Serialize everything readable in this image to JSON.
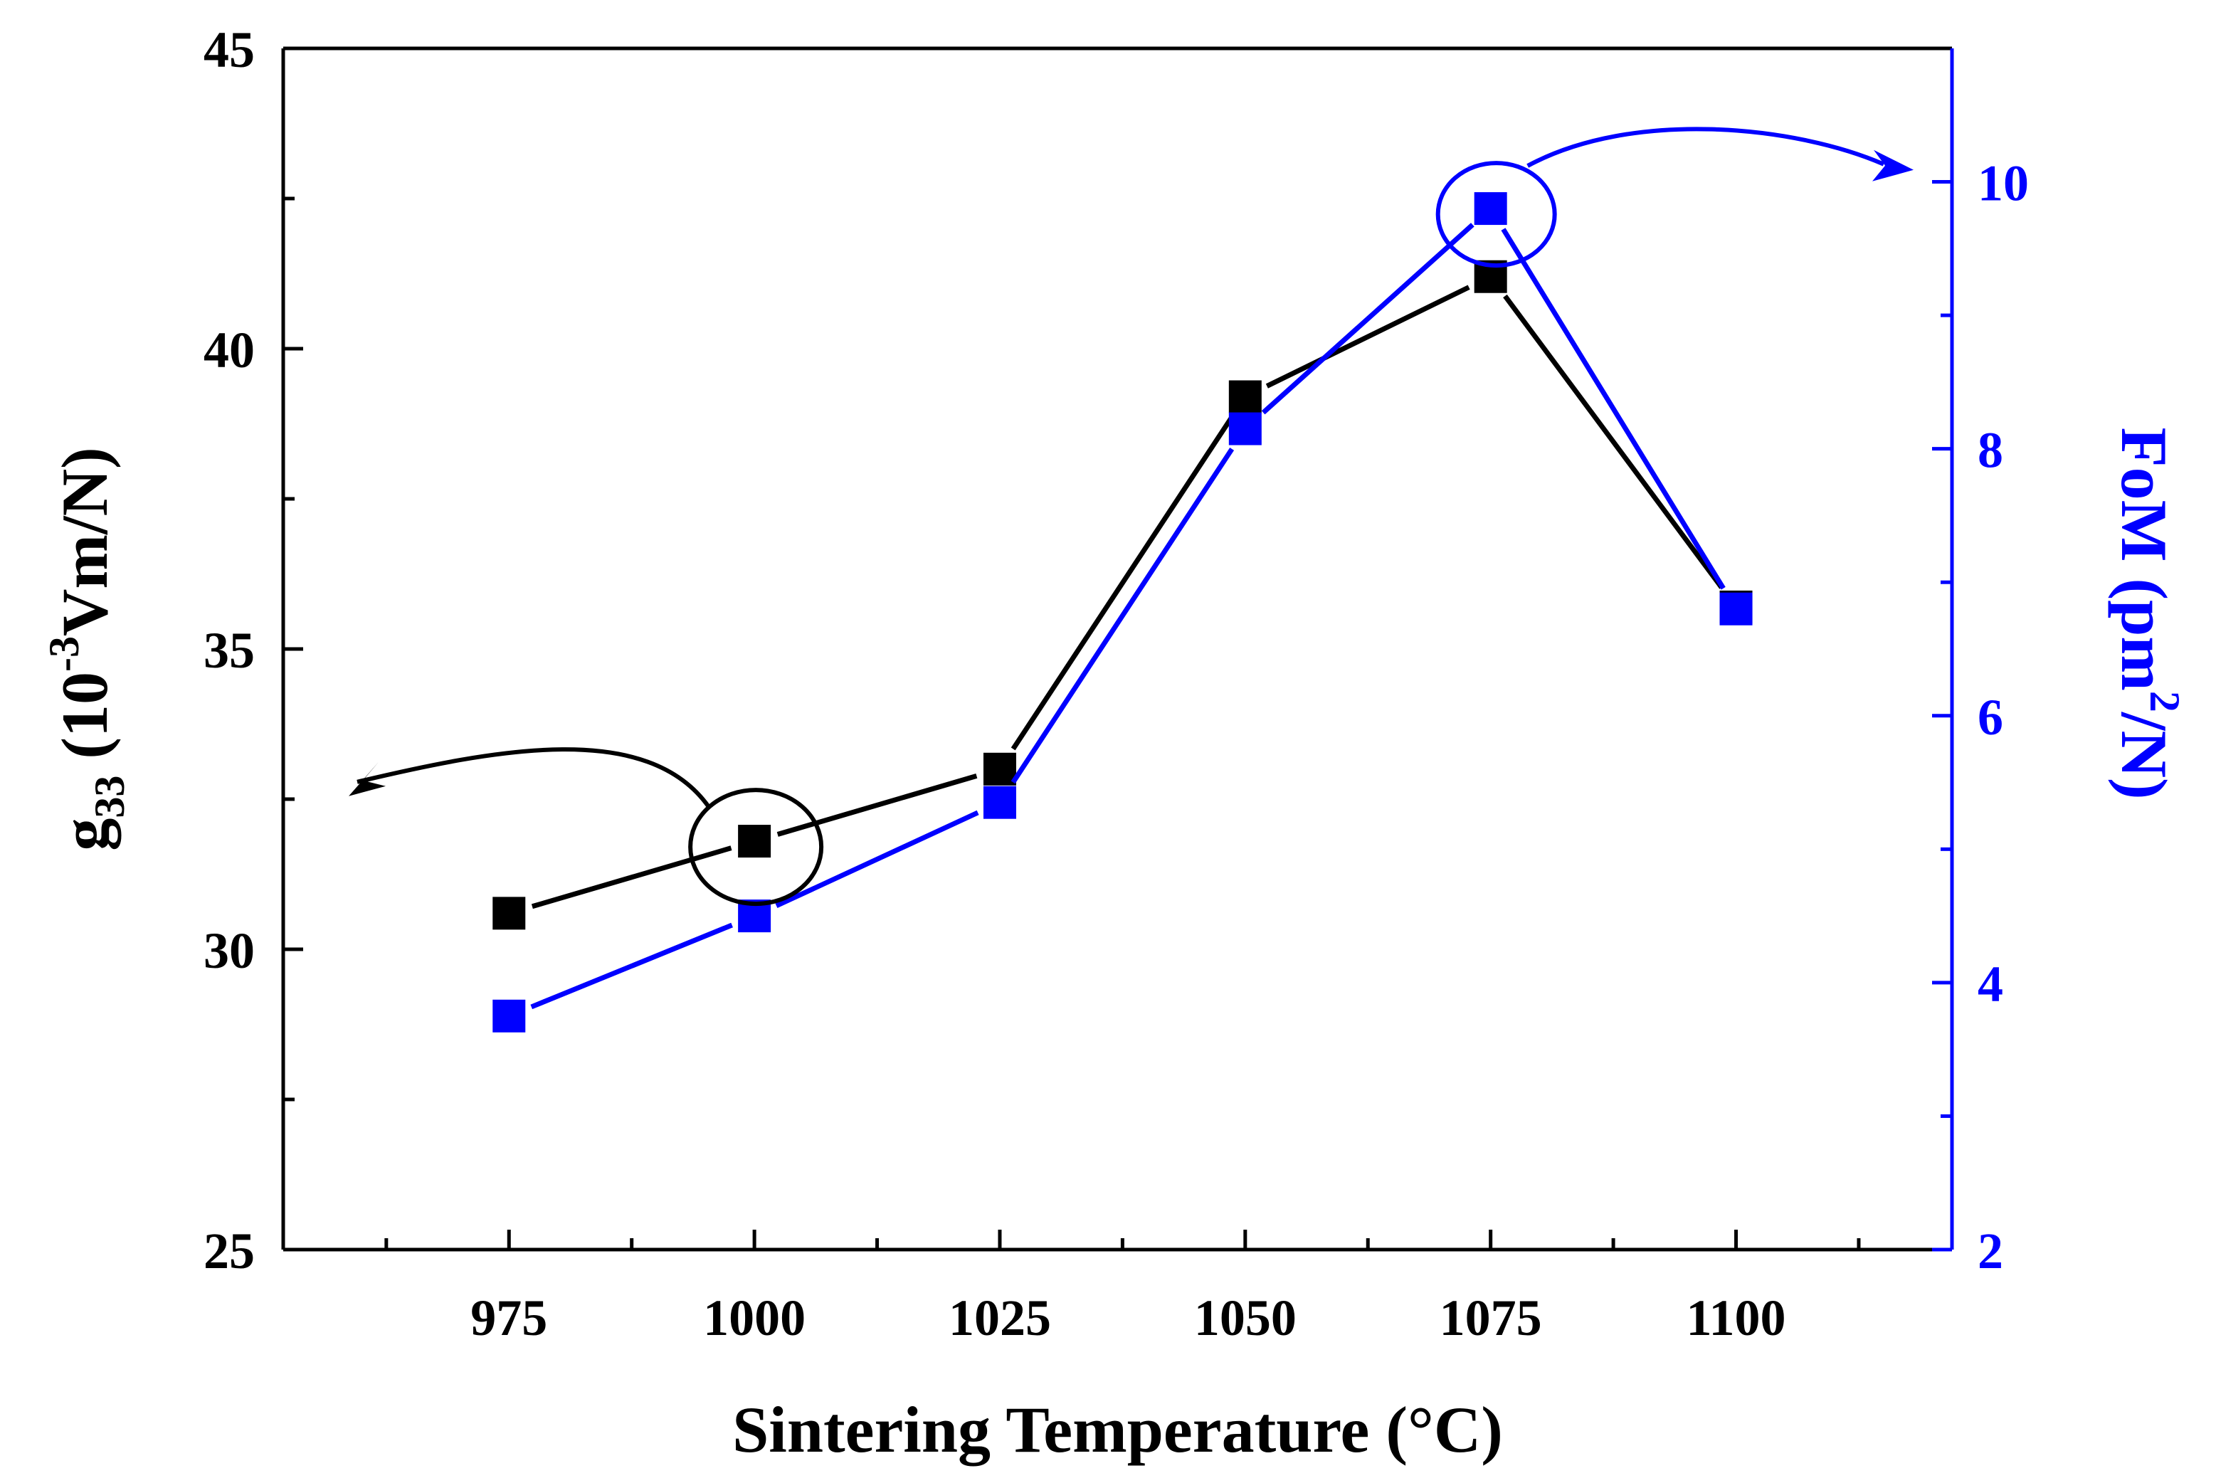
{
  "chart_data": {
    "type": "line",
    "title": "",
    "xlabel": "Sintering Temperature (°C)",
    "xlim": [
      952,
      1122
    ],
    "x_ticks": [
      975,
      1000,
      1025,
      1050,
      1075,
      1100
    ],
    "x_tick_labels": [
      "975",
      "1000",
      "1025",
      "1050",
      "1075",
      "1100"
    ],
    "y_left": {
      "label_main": "g",
      "label_sub": "33",
      "label_rest1": " (10",
      "label_sup": "-3",
      "label_rest2": "Vm/N)",
      "lim": [
        25,
        45
      ],
      "ticks": [
        25,
        30,
        35,
        40,
        45
      ],
      "tick_labels": [
        "25",
        "30",
        "35",
        "40",
        "45"
      ],
      "color": "#000000"
    },
    "y_right": {
      "label_part1": "FoM (pm",
      "label_sup": "2",
      "label_part2": "/N)",
      "lim": [
        2,
        11
      ],
      "ticks": [
        2,
        4,
        6,
        8,
        10
      ],
      "tick_labels": [
        "2",
        "4",
        "6",
        "8",
        "10"
      ],
      "color": "#0000ff"
    },
    "x": [
      975,
      1000,
      1025,
      1050,
      1075,
      1100
    ],
    "series": [
      {
        "name": "g33",
        "axis": "left",
        "color": "#000000",
        "values": [
          30.6,
          31.8,
          33.0,
          39.2,
          41.2,
          35.7
        ]
      },
      {
        "name": "FoM",
        "axis": "right",
        "color": "#0000ff",
        "values": [
          3.75,
          4.5,
          5.35,
          8.15,
          9.8,
          6.8
        ]
      }
    ],
    "annotations": [
      {
        "type": "circle",
        "series": "g33",
        "index": 1,
        "arrow_to": "left-axis"
      },
      {
        "type": "circle",
        "series": "FoM",
        "index": 4,
        "arrow_to": "right-axis"
      }
    ]
  }
}
